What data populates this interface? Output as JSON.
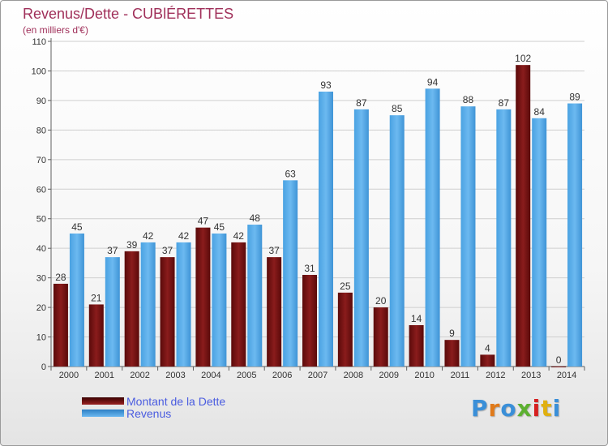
{
  "title": "Revenus/Dette - CUBlÉRETTES",
  "subtitle": "(en milliers d'€)",
  "logo": "Proxiti",
  "colors": {
    "debt": "#7a1212",
    "revenue": "#5aaee8",
    "axis": "#606060",
    "grid": "#cfcfcf"
  },
  "chart_data": {
    "type": "bar",
    "title": "Revenus/Dette - CUBlÉRETTES",
    "ylabel": "(en milliers d'€)",
    "xlabel": "",
    "categories": [
      "2000",
      "2001",
      "2002",
      "2003",
      "2004",
      "2005",
      "2006",
      "2007",
      "2008",
      "2009",
      "2010",
      "2011",
      "2012",
      "2013",
      "2014"
    ],
    "series": [
      {
        "name": "Montant de la Dette",
        "values": [
          28,
          21,
          39,
          37,
          47,
          42,
          37,
          31,
          25,
          20,
          14,
          9,
          4,
          102,
          0
        ]
      },
      {
        "name": "Revenus",
        "values": [
          45,
          37,
          42,
          42,
          45,
          48,
          63,
          93,
          87,
          85,
          94,
          88,
          87,
          84,
          89
        ]
      }
    ],
    "ylim": [
      0,
      110
    ],
    "yticks": [
      0,
      10,
      20,
      30,
      40,
      50,
      60,
      70,
      80,
      90,
      100,
      110
    ],
    "grid": true,
    "legend_position": "bottom-left"
  }
}
